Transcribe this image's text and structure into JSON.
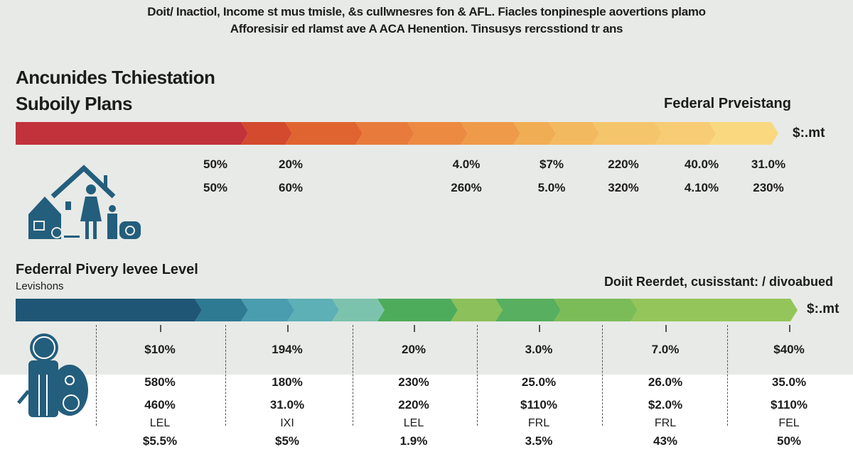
{
  "intro": {
    "line1": "Doit/ Inactiol, Income st mus tmisle, &s cullwnesres fon & AFL. Fiacles tonpinesple aovertions plamo",
    "line2": "Afforesisir ed rlamst ave A ACA Henention. Tinsusys rercsstiond tr ans"
  },
  "section1": {
    "title": "Ancunides Tchiestation",
    "subtitle": "Suboily Plans",
    "right_label": "Federal Prveistang",
    "bar_end_label": "$:.mt",
    "bar_colors": [
      "#c1323b",
      "#d44a2e",
      "#e0642f",
      "#e87b3c",
      "#ec8a42",
      "#ef9a49",
      "#f1ad54",
      "#f3b95f",
      "#f5c56b",
      "#f7cc74",
      "#f9d880"
    ],
    "row1": [
      "50%",
      "20%",
      "4.0%",
      "$7%",
      "220%",
      "40.0%",
      "31.0%"
    ],
    "row2": [
      "50%",
      "60%",
      "260%",
      "5.0%",
      "320%",
      "4.10%",
      "230%"
    ],
    "icon": "house-family-icon"
  },
  "section2": {
    "title": "Federral Pivery levee Level",
    "subtitle": "Levishons",
    "right_label": "Doiit Reerdet, cusisstant: / divoabued",
    "bar_end_label": "$:.mt",
    "bar_colors": [
      "#1f5676",
      "#2f7a93",
      "#4a9caf",
      "#5db0b5",
      "#7cc3ad",
      "#4dab5c",
      "#8cc05a",
      "#57af5f",
      "#7cbc58",
      "#94c55a"
    ],
    "icon": "person-money-bag-icon",
    "columns": [
      {
        "r1": "$10%",
        "r2": "580%",
        "r3": "460%",
        "r4": "LEL",
        "r5": "$5.5%"
      },
      {
        "r1": "194%",
        "r2": "180%",
        "r3": "31.0%",
        "r4": "IXI",
        "r5": "$5%"
      },
      {
        "r1": "20%",
        "r2": "230%",
        "r3": "220%",
        "r4": "LEL",
        "r5": "1.9%"
      },
      {
        "r1": "3.0%",
        "r2": "25.0%",
        "r3": "$110%",
        "r4": "FRL",
        "r5": "3.5%"
      },
      {
        "r1": "7.0%",
        "r2": "26.0%",
        "r3": "$2.0%",
        "r4": "FRL",
        "r5": "43%"
      },
      {
        "r1": "$40%",
        "r2": "35.0%",
        "r3": "$110%",
        "r4": "FEL",
        "r5": "50%"
      }
    ]
  }
}
